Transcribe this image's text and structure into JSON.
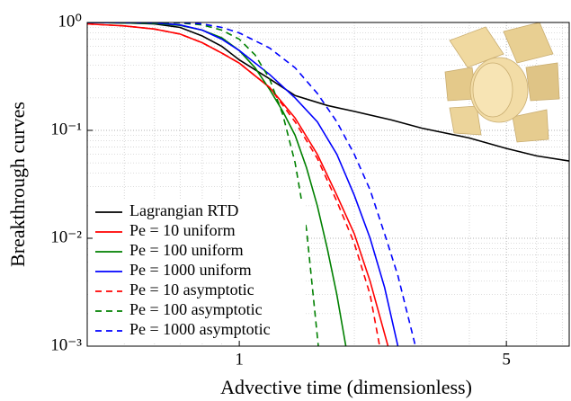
{
  "chart_data": {
    "type": "line",
    "xlabel": "Advective time (dimensionless)",
    "ylabel": "Breakthrough curves",
    "xscale": "log",
    "yscale": "log",
    "xlim": [
      0.4,
      7.3
    ],
    "ylim": [
      0.001,
      1
    ],
    "xticks": [
      1,
      5
    ],
    "yticks": [
      {
        "value": 1,
        "label": "10⁰"
      },
      {
        "value": 0.1,
        "label": "10⁻¹"
      },
      {
        "value": 0.01,
        "label": "10⁻²"
      },
      {
        "value": 0.001,
        "label": "10⁻³"
      }
    ],
    "xminor": [
      0.4,
      0.5,
      0.6,
      0.7,
      0.8,
      0.9,
      2,
      3,
      4,
      6,
      7
    ],
    "yminor": [
      0.002,
      0.003,
      0.004,
      0.005,
      0.006,
      0.007,
      0.008,
      0.009,
      0.02,
      0.03,
      0.04,
      0.05,
      0.06,
      0.07,
      0.08,
      0.09,
      0.2,
      0.3,
      0.4,
      0.5,
      0.6,
      0.7,
      0.8,
      0.9
    ],
    "grid": true,
    "legend": "lower left",
    "series": [
      {
        "name": "Lagrangian RTD",
        "color": "#000000",
        "dashed": false,
        "x": [
          0.4,
          0.5,
          0.6,
          0.7,
          0.8,
          0.9,
          1,
          1.2,
          1.4,
          1.7,
          2,
          2.5,
          3,
          4,
          5,
          6,
          7.3
        ],
        "values": [
          1,
          0.99,
          0.97,
          0.9,
          0.75,
          0.6,
          0.45,
          0.3,
          0.21,
          0.17,
          0.15,
          0.125,
          0.105,
          0.085,
          0.068,
          0.058,
          0.052
        ]
      },
      {
        "name": "Pe = 10 uniform",
        "color": "#ff0000",
        "dashed": false,
        "x": [
          0.4,
          0.5,
          0.6,
          0.7,
          0.8,
          0.9,
          1,
          1.2,
          1.4,
          1.6,
          1.8,
          2,
          2.2,
          2.45
        ],
        "values": [
          0.97,
          0.93,
          0.87,
          0.78,
          0.65,
          0.52,
          0.42,
          0.25,
          0.13,
          0.06,
          0.025,
          0.011,
          0.004,
          0.001
        ]
      },
      {
        "name": "Pe = 100 uniform",
        "color": "#008000",
        "dashed": false,
        "x": [
          0.4,
          0.6,
          0.7,
          0.8,
          0.9,
          1,
          1.1,
          1.2,
          1.3,
          1.4,
          1.5,
          1.6,
          1.7,
          1.8,
          1.9
        ],
        "values": [
          1,
          0.98,
          0.94,
          0.85,
          0.72,
          0.55,
          0.38,
          0.24,
          0.15,
          0.09,
          0.045,
          0.02,
          0.008,
          0.003,
          0.001
        ]
      },
      {
        "name": "Pe = 1000 uniform",
        "color": "#0000ff",
        "dashed": false,
        "x": [
          0.4,
          0.6,
          0.7,
          0.8,
          0.9,
          1,
          1.2,
          1.4,
          1.6,
          1.8,
          2,
          2.2,
          2.4,
          2.6
        ],
        "values": [
          1,
          0.99,
          0.95,
          0.85,
          0.7,
          0.55,
          0.33,
          0.2,
          0.12,
          0.06,
          0.025,
          0.01,
          0.0035,
          0.001
        ]
      },
      {
        "name": "Pe = 10 asymptotic",
        "color": "#ff0000",
        "dashed": true,
        "x": [
          0.4,
          0.5,
          0.6,
          0.7,
          0.8,
          0.9,
          1,
          1.2,
          1.4,
          1.6,
          1.8,
          2,
          2.2,
          2.33
        ],
        "values": [
          0.97,
          0.93,
          0.87,
          0.78,
          0.65,
          0.52,
          0.42,
          0.25,
          0.12,
          0.055,
          0.022,
          0.009,
          0.003,
          0.001
        ]
      },
      {
        "name": "Pe = 100 asymptotic",
        "color": "#008000",
        "dashed": true,
        "x": [
          0.4,
          0.7,
          0.8,
          0.9,
          1,
          1.1,
          1.2,
          1.3,
          1.4,
          1.5,
          1.61
        ],
        "values": [
          1,
          0.99,
          0.95,
          0.85,
          0.7,
          0.5,
          0.3,
          0.14,
          0.05,
          0.012,
          0.001
        ]
      },
      {
        "name": "Pe = 1000 asymptotic",
        "color": "#0000ff",
        "dashed": true,
        "x": [
          0.4,
          0.7,
          0.8,
          0.9,
          1,
          1.2,
          1.4,
          1.6,
          1.8,
          2,
          2.2,
          2.4,
          2.6,
          2.89
        ],
        "values": [
          1,
          1,
          0.97,
          0.9,
          0.8,
          0.58,
          0.38,
          0.22,
          0.12,
          0.06,
          0.028,
          0.011,
          0.0045,
          0.001
        ]
      }
    ]
  }
}
